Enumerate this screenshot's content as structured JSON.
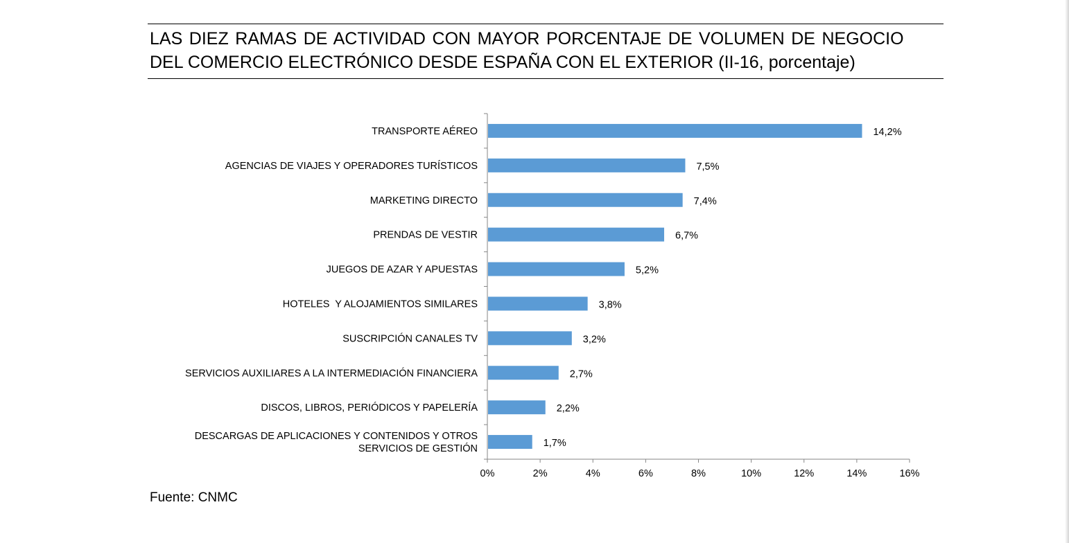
{
  "header": {
    "title_line1": "LAS DIEZ RAMAS DE ACTIVIDAD CON MAYOR PORCENTAJE DE VOLUMEN DE NEGOCIO",
    "title_line2": "DEL COMERCIO ELECTRÓNICO DESDE ESPAÑA CON EL EXTERIOR (II-16, porcentaje)"
  },
  "footer": {
    "source": "Fuente: CNMC"
  },
  "chart_data": {
    "type": "bar",
    "orientation": "horizontal",
    "title": "LAS DIEZ RAMAS DE ACTIVIDAD CON MAYOR PORCENTAJE DE VOLUMEN DE NEGOCIO DEL COMERCIO ELECTRÓNICO DESDE ESPAÑA CON EL EXTERIOR (II-16, porcentaje)",
    "categories": [
      [
        "TRANSPORTE AÉREO"
      ],
      [
        "AGENCIAS DE VIAJES Y OPERADORES TURÍSTICOS"
      ],
      [
        "MARKETING DIRECTO"
      ],
      [
        "PRENDAS DE VESTIR"
      ],
      [
        "JUEGOS DE AZAR Y APUESTAS"
      ],
      [
        "HOTELES  Y ALOJAMIENTOS SIMILARES"
      ],
      [
        "SUSCRIPCIÓN CANALES TV"
      ],
      [
        "SERVICIOS AUXILIARES A LA INTERMEDIACIÓN FINANCIERA"
      ],
      [
        "DISCOS, LIBROS, PERIÓDICOS Y PAPELERÍA"
      ],
      [
        "DESCARGAS DE APLICACIONES Y CONTENIDOS Y OTROS",
        "SERVICIOS DE GESTIÓN"
      ]
    ],
    "values": [
      14.2,
      7.5,
      7.4,
      6.7,
      5.2,
      3.8,
      3.2,
      2.7,
      2.2,
      1.7
    ],
    "value_labels": [
      "14,2%",
      "7,5%",
      "7,4%",
      "6,7%",
      "5,2%",
      "3,8%",
      "3,2%",
      "2,7%",
      "2,2%",
      "1,7%"
    ],
    "xlim": [
      0,
      16
    ],
    "xticks": [
      0,
      2,
      4,
      6,
      8,
      10,
      12,
      14,
      16
    ],
    "xtick_labels": [
      "0%",
      "2%",
      "4%",
      "6%",
      "8%",
      "10%",
      "12%",
      "14%",
      "16%"
    ],
    "xlabel": "",
    "ylabel": "",
    "grid": false,
    "legend": "none",
    "bar_color": "#5b9bd5",
    "axis_color": "#868686"
  }
}
